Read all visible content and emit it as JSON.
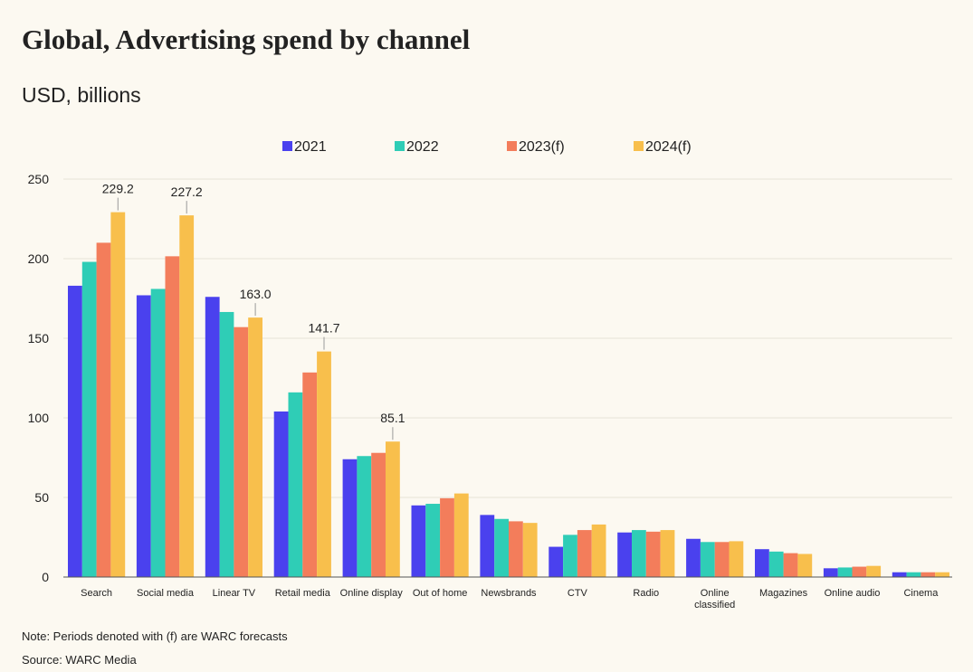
{
  "header": {
    "title": "Global, Advertising spend by channel",
    "subtitle": "USD, billions"
  },
  "footer": {
    "note": "Note: Periods denoted with (f) are WARC forecasts",
    "source": "Source: WARC Media"
  },
  "colors": {
    "series": [
      "#4a41ee",
      "#2fcdb6",
      "#f37d5b",
      "#f8bf4c"
    ],
    "gridline": "#e6e2d8",
    "text": "#222222"
  },
  "chart_data": {
    "type": "bar",
    "title": "Global, Advertising spend by channel",
    "subtitle": "USD, billions",
    "xlabel": "",
    "ylabel": "",
    "ylim": [
      0,
      250
    ],
    "yticks": [
      0,
      50,
      100,
      150,
      200,
      250
    ],
    "grid": true,
    "legend_position": "top-center",
    "categories": [
      [
        "Search"
      ],
      [
        "Social media"
      ],
      [
        "Linear TV"
      ],
      [
        "Retail media"
      ],
      [
        "Online display"
      ],
      [
        "Out of home"
      ],
      [
        "Newsbrands"
      ],
      [
        "CTV"
      ],
      [
        "Radio"
      ],
      [
        "Online",
        "classified"
      ],
      [
        "Magazines"
      ],
      [
        "Online audio"
      ],
      [
        "Cinema"
      ]
    ],
    "series": [
      {
        "name": "2021",
        "values": [
          183,
          177,
          176,
          104,
          74,
          45,
          39,
          19,
          28,
          24,
          17.5,
          5.5,
          3
        ]
      },
      {
        "name": "2022",
        "values": [
          198,
          181,
          166.5,
          116,
          76,
          46,
          36.5,
          26.5,
          29.5,
          22,
          16,
          6,
          3
        ]
      },
      {
        "name": "2023(f)",
        "values": [
          210,
          201.5,
          157,
          128.5,
          78,
          49.5,
          35,
          29.5,
          28.5,
          22,
          15,
          6.5,
          3
        ]
      },
      {
        "name": "2024(f)",
        "values": [
          229.2,
          227.2,
          163.0,
          141.7,
          85.1,
          52.5,
          34,
          33,
          29.5,
          22.5,
          14.5,
          7,
          3
        ]
      }
    ],
    "annotations": [
      {
        "category": 0,
        "series": 3,
        "text": "229.2"
      },
      {
        "category": 1,
        "series": 3,
        "text": "227.2"
      },
      {
        "category": 2,
        "series": 3,
        "text": "163.0"
      },
      {
        "category": 3,
        "series": 3,
        "text": "141.7"
      },
      {
        "category": 4,
        "series": 3,
        "text": "85.1"
      }
    ]
  }
}
